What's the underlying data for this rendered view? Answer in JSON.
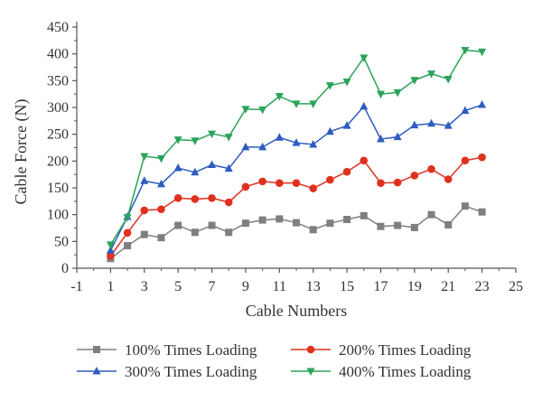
{
  "chart_data": {
    "type": "line",
    "xlabel": "Cable Numbers",
    "ylabel": "Cable Force (N)",
    "xlim": [
      -1,
      25
    ],
    "ylim": [
      0,
      450
    ],
    "x_ticks": [
      -1,
      1,
      3,
      5,
      7,
      9,
      11,
      13,
      15,
      17,
      19,
      21,
      23,
      25
    ],
    "y_ticks": [
      0,
      50,
      100,
      150,
      200,
      250,
      300,
      350,
      400,
      450
    ],
    "x_tick_labels": [
      "-1",
      "1",
      "3",
      "5",
      "7",
      "9",
      "11",
      "13",
      "15",
      "17",
      "19",
      "21",
      "23",
      "25"
    ],
    "y_tick_labels": [
      "0",
      "50",
      "100",
      "150",
      "200",
      "250",
      "300",
      "350",
      "400",
      "450"
    ],
    "grid": false,
    "legend_position": "bottom",
    "x": [
      1,
      2,
      3,
      4,
      5,
      6,
      7,
      8,
      9,
      10,
      11,
      12,
      13,
      14,
      15,
      16,
      17,
      18,
      19,
      20,
      21,
      22,
      23
    ],
    "series": [
      {
        "name": "100% Times Loading",
        "color": "#7f7f7f",
        "marker": "square",
        "values": [
          18,
          42,
          63,
          57,
          80,
          67,
          80,
          67,
          84,
          90,
          92,
          85,
          72,
          84,
          91,
          98,
          78,
          80,
          76,
          100,
          81,
          116,
          105
        ]
      },
      {
        "name": "200% Times Loading",
        "color": "#e0301e",
        "marker": "circle",
        "values": [
          23,
          66,
          108,
          110,
          131,
          129,
          131,
          123,
          152,
          162,
          159,
          159,
          149,
          165,
          180,
          201,
          159,
          160,
          173,
          185,
          166,
          201,
          207
        ]
      },
      {
        "name": "300% Times Loading",
        "color": "#2e5cbf",
        "marker": "triangle-up",
        "values": [
          33,
          96,
          163,
          157,
          187,
          179,
          193,
          186,
          226,
          226,
          244,
          234,
          231,
          255,
          266,
          302,
          241,
          245,
          267,
          270,
          266,
          294,
          305
        ]
      },
      {
        "name": "400% Times Loading",
        "color": "#2ca35a",
        "marker": "triangle-down",
        "values": [
          44,
          95,
          209,
          205,
          240,
          238,
          251,
          245,
          297,
          296,
          321,
          307,
          307,
          341,
          348,
          393,
          325,
          328,
          351,
          363,
          353,
          407,
          404
        ]
      }
    ]
  }
}
